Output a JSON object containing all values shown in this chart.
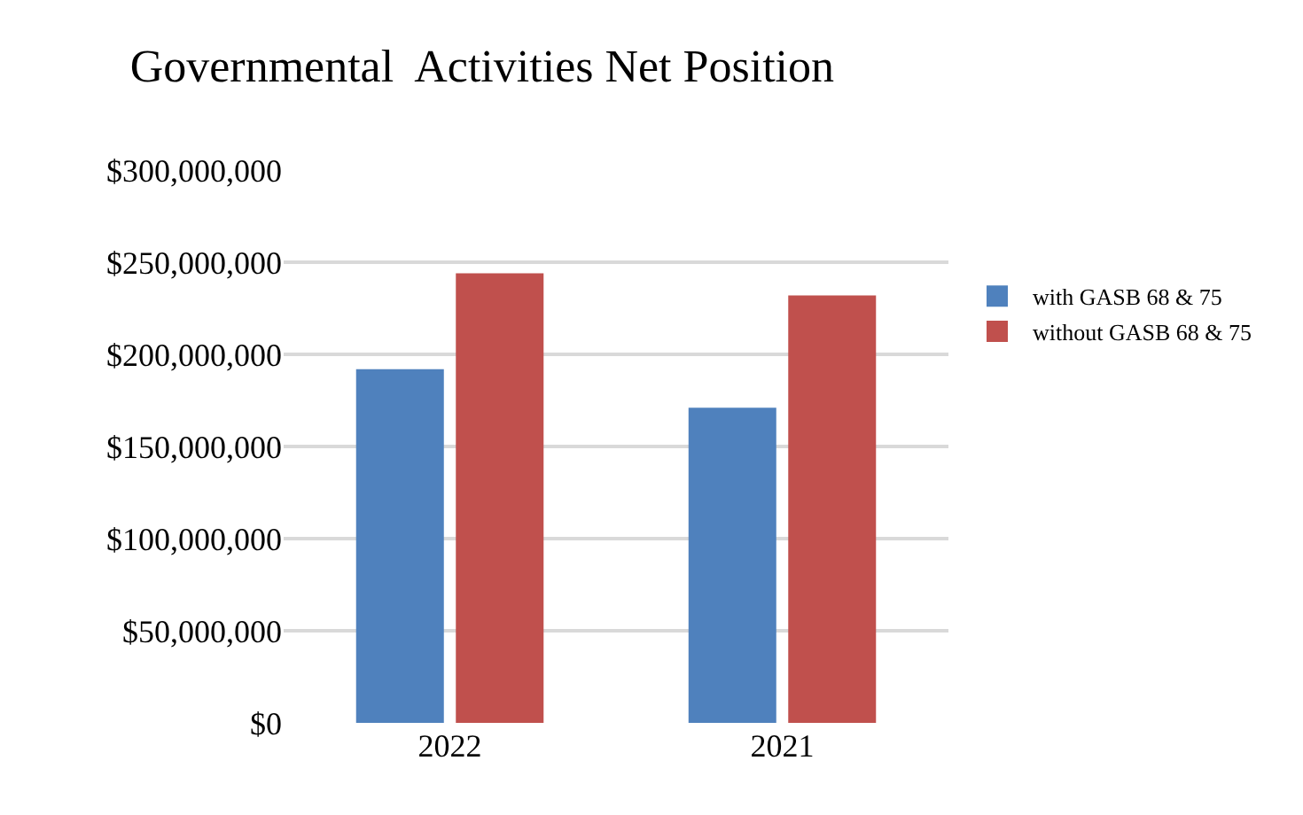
{
  "chart_data": {
    "type": "bar",
    "title": "Governmental  Activities Net Position",
    "categories": [
      "2022",
      "2021"
    ],
    "series": [
      {
        "name": "with GASB 68 & 75",
        "color": "#4f81bd",
        "values": [
          192000000,
          171000000
        ]
      },
      {
        "name": "without GASB 68 & 75",
        "color": "#c0504d",
        "values": [
          244000000,
          232000000
        ]
      }
    ],
    "ylim": [
      0,
      300000000
    ],
    "yticks": [
      {
        "value": 0,
        "label": "$0"
      },
      {
        "value": 50000000,
        "label": "$50,000,000"
      },
      {
        "value": 100000000,
        "label": "$100,000,000"
      },
      {
        "value": 150000000,
        "label": "$150,000,000"
      },
      {
        "value": 200000000,
        "label": "$200,000,000"
      },
      {
        "value": 250000000,
        "label": "$250,000,000"
      },
      {
        "value": 300000000,
        "label": "$300,000,000"
      }
    ],
    "grid": "y",
    "legend": "right"
  }
}
